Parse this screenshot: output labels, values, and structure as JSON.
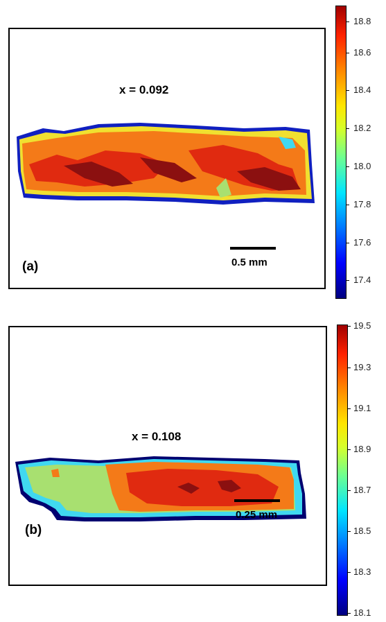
{
  "panel_a": {
    "label": "(a)",
    "composition": "x = 0.092",
    "scale_text": "0.5 mm",
    "colorbar": {
      "min": 17.3,
      "max": 18.85,
      "ticks": [
        "18.8",
        "18.6",
        "18.4",
        "18.2",
        "18.0",
        "17.8",
        "17.6",
        "17.4"
      ]
    }
  },
  "panel_b": {
    "label": "(b)",
    "composition": "x = 0.108",
    "scale_text": "0.25 mm",
    "colorbar": {
      "min": 18.1,
      "max": 19.5,
      "ticks": [
        "19.5",
        "19.3",
        "19.1",
        "18.9",
        "18.7",
        "18.5",
        "18.3",
        "18.1"
      ]
    }
  },
  "colors": {
    "dark_red": "#8b1010",
    "red": "#e02a10",
    "orange": "#f47a18",
    "yellow": "#f0e030",
    "green": "#a8e070",
    "cyan": "#40d8f0",
    "blue": "#1020c0",
    "navy": "#000070"
  }
}
